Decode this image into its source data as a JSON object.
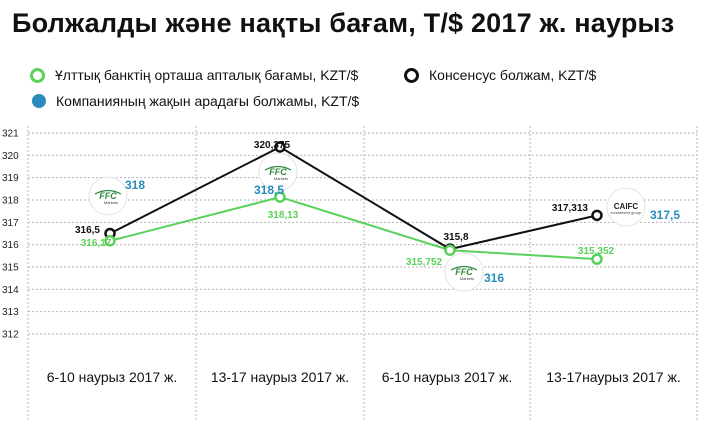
{
  "title": "Болжалды және нақты бағам, Т/$ 2017 ж. наурыз",
  "legend": {
    "green": "Ұлттық банктің орташа апталық бағамы, KZT/$",
    "black": "Консенсус болжам, KZT/$",
    "blue": "Компанияның жақын арадағы болжамы, KZT/$"
  },
  "colors": {
    "green": "#5ad15a",
    "black": "#111111",
    "blue": "#2a8bbd"
  },
  "logos": {
    "ffc_text": "FFC",
    "ffc_sub": "Markets",
    "caifc_text": "CAIFC",
    "caifc_sub": "investment group"
  },
  "chart_data": {
    "type": "line",
    "categories": [
      "6-10 наурыз 2017 ж.",
      "13-17 наурыз 2017 ж.",
      "6-10 наурыз 2017 ж.",
      "13-17наурыз 2017 ж."
    ],
    "ylim": [
      312,
      321
    ],
    "yticks": [
      312,
      313,
      314,
      315,
      316,
      317,
      318,
      319,
      320,
      321
    ],
    "grid": "horizontal dashed",
    "legend_position": "top",
    "series": [
      {
        "name": "Ұлттық банктің орташа апталық бағамы, KZT/$",
        "color": "green",
        "values": [
          316.17,
          318.13,
          315.752,
          315.352
        ],
        "labels": [
          "316,17",
          "318,13",
          "315,752",
          "315,352"
        ]
      },
      {
        "name": "Консенсус болжам, KZT/$",
        "color": "black",
        "values": [
          316.5,
          320.375,
          315.8,
          317.313
        ],
        "labels": [
          "316,5",
          "320,375",
          "315,8",
          "317,313"
        ]
      },
      {
        "name": "Компанияның жақын арадағы болжамы, KZT/$",
        "color": "blue",
        "values": [
          318,
          318.5,
          316,
          317.5
        ],
        "labels": [
          "318",
          "318,5",
          "316",
          "317,5"
        ]
      }
    ]
  }
}
